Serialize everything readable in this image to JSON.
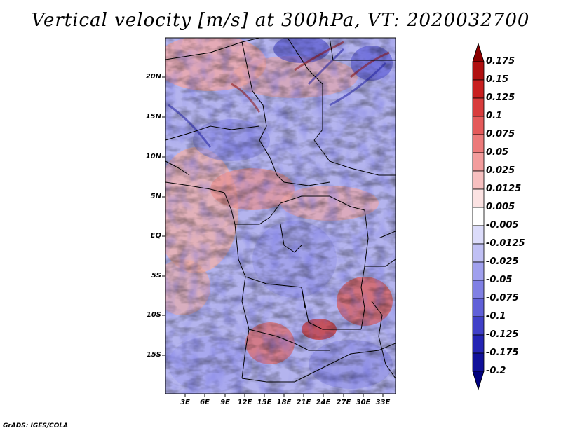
{
  "title": "Vertical velocity [m/s] at 300hPa, VT: 2020032700",
  "map": {
    "variable": "Vertical velocity",
    "units": "m/s",
    "level": "300hPa",
    "valid_time": "2020032700",
    "lat_labels": [
      "20N",
      "15N",
      "10N",
      "5N",
      "EQ",
      "5S",
      "10S",
      "15S"
    ],
    "lon_labels": [
      "3E",
      "6E",
      "9E",
      "12E",
      "15E",
      "18E",
      "21E",
      "24E",
      "27E",
      "30E",
      "33E"
    ]
  },
  "colorbar": {
    "labels": [
      "0.175",
      "0.15",
      "0.125",
      "0.1",
      "0.075",
      "0.05",
      "0.025",
      "0.0125",
      "0.005",
      "-0.005",
      "-0.0125",
      "-0.025",
      "-0.05",
      "-0.075",
      "-0.1",
      "-0.125",
      "-0.175",
      "-0.2"
    ],
    "colors": [
      "#8b0000",
      "#b01010",
      "#c82020",
      "#d83c3c",
      "#e45a5a",
      "#ec7a7a",
      "#f29c9c",
      "#f7c0c0",
      "#fbe2e2",
      "#ffffff",
      "#dcdcfa",
      "#c0c0f4",
      "#a0a0ee",
      "#8080e4",
      "#6060d8",
      "#4040c8",
      "#2424b4",
      "#10109a",
      "#000080"
    ]
  },
  "credit": "GrADS: IGES/COLA"
}
